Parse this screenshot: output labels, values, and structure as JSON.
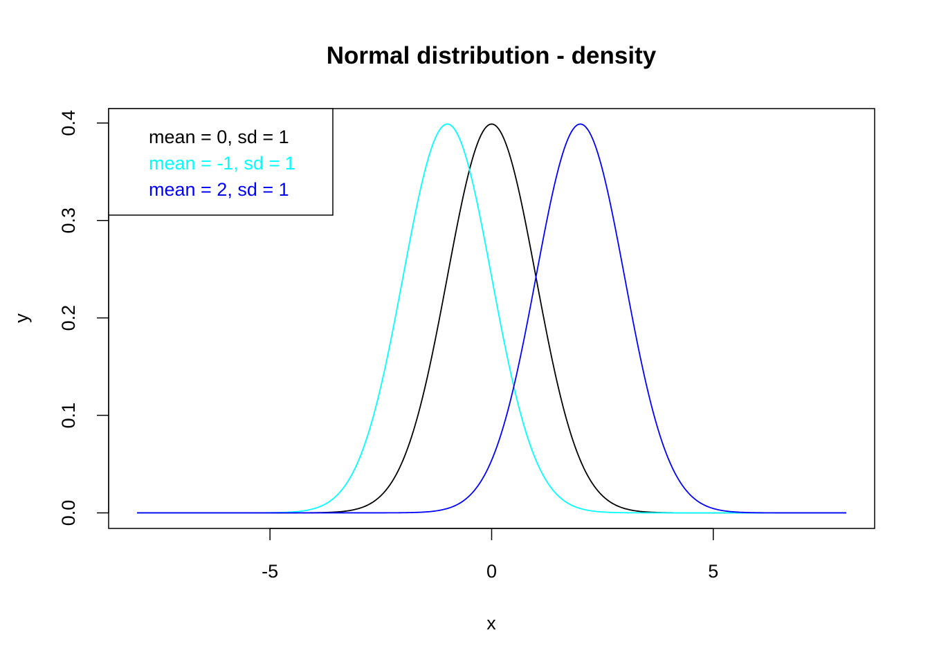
{
  "chart_data": {
    "type": "line",
    "title": "Normal distribution - density",
    "xlabel": "x",
    "ylabel": "y",
    "xlim": [
      -8.64,
      8.64
    ],
    "ylim": [
      -0.016,
      0.4148
    ],
    "x_range": [
      -8,
      8
    ],
    "x_ticks": [
      {
        "value": -5,
        "label": "-5"
      },
      {
        "value": 0,
        "label": "0"
      },
      {
        "value": 5,
        "label": "5"
      }
    ],
    "y_ticks": [
      {
        "value": 0.0,
        "label": "0.0"
      },
      {
        "value": 0.1,
        "label": "0.1"
      },
      {
        "value": 0.2,
        "label": "0.2"
      },
      {
        "value": 0.3,
        "label": "0.3"
      },
      {
        "value": 0.4,
        "label": "0.4"
      }
    ],
    "grid": false,
    "legend_position": "top-left",
    "series": [
      {
        "name": "mean = 0, sd = 1",
        "mean": 0,
        "sd": 1,
        "color": "#000000"
      },
      {
        "name": "mean = -1, sd = 1",
        "mean": -1,
        "sd": 1,
        "color": "#00FFFF"
      },
      {
        "name": "mean = 2, sd = 1",
        "mean": 2,
        "sd": 1,
        "color": "#0000FF"
      }
    ]
  }
}
